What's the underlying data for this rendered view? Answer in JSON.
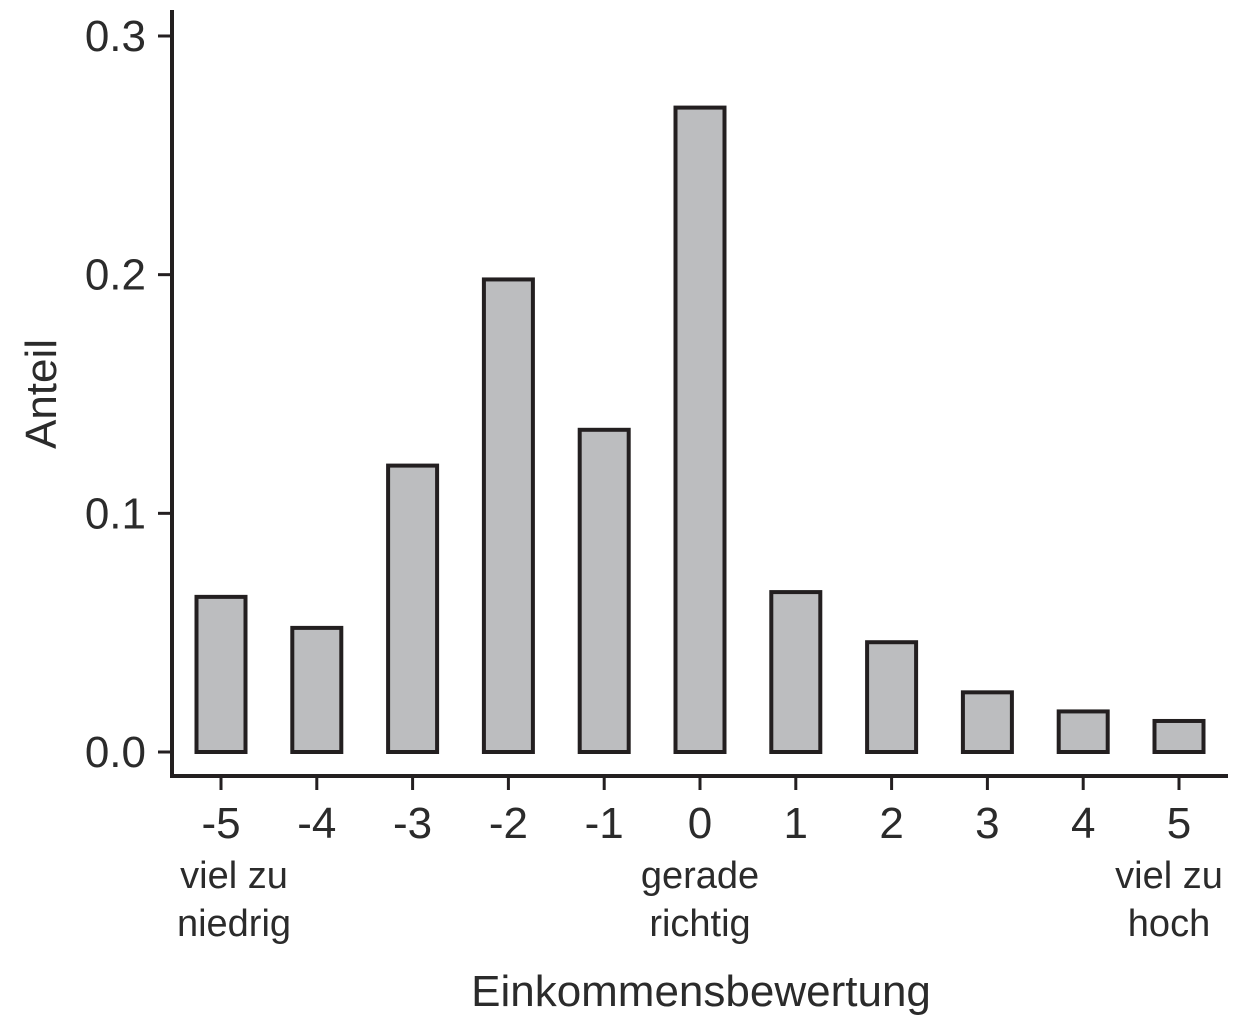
{
  "chart_data": {
    "type": "bar",
    "xlabel": "Einkommensbewertung",
    "ylabel": "Anteil",
    "categories": [
      "-5",
      "-4",
      "-3",
      "-2",
      "-1",
      "0",
      "1",
      "2",
      "3",
      "4",
      "5"
    ],
    "values": [
      0.065,
      0.052,
      0.12,
      0.198,
      0.135,
      0.27,
      0.067,
      0.046,
      0.025,
      0.017,
      0.013
    ],
    "ylim": [
      0,
      0.3
    ],
    "yticks": [
      "0.0",
      "0.1",
      "0.2",
      "0.3"
    ],
    "category_notes": [
      {
        "category": "-5",
        "lines": [
          "viel zu",
          "niedrig"
        ]
      },
      {
        "category": "0",
        "lines": [
          "gerade",
          "richtig"
        ]
      },
      {
        "category": "5",
        "lines": [
          "viel zu",
          "hoch"
        ]
      }
    ],
    "grid": false,
    "legend": "none",
    "bar_fill": "#bcbdbf",
    "bar_stroke": "#231f20",
    "axis_color": "#231f20"
  }
}
